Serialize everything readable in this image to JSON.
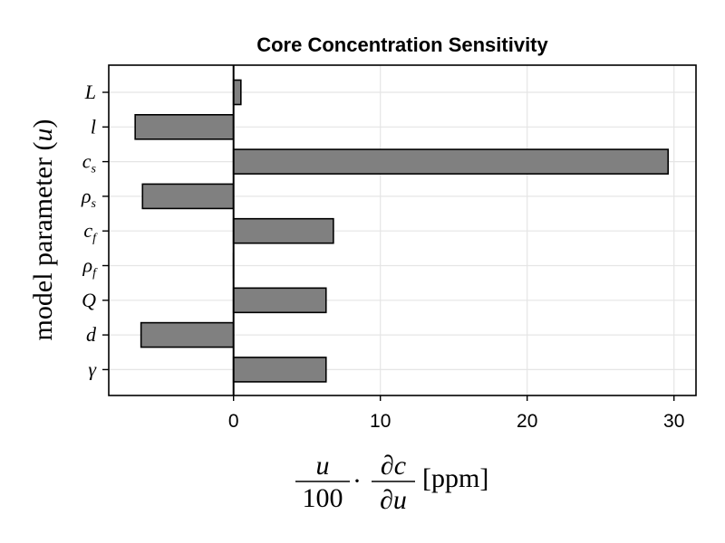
{
  "chart_data": {
    "type": "bar",
    "orientation": "horizontal",
    "title": "Core Concentration Sensitivity",
    "categories": [
      {
        "symbol": "L",
        "sub": ""
      },
      {
        "symbol": "l",
        "sub": ""
      },
      {
        "symbol": "c",
        "sub": "s"
      },
      {
        "symbol": "ρ",
        "sub": "s"
      },
      {
        "symbol": "c",
        "sub": "f"
      },
      {
        "symbol": "ρ",
        "sub": "f"
      },
      {
        "symbol": "Q",
        "sub": ""
      },
      {
        "symbol": "d",
        "sub": ""
      },
      {
        "symbol": "γ",
        "sub": ""
      }
    ],
    "values": [
      0.5,
      -6.7,
      29.6,
      -6.2,
      6.8,
      0.0,
      6.3,
      -6.3,
      6.3
    ],
    "xlim": [
      -8.5,
      31.5
    ],
    "xticks": [
      0,
      10,
      20,
      30
    ],
    "ylabel": "model parameter (u)",
    "ylabel_parts": {
      "text": "model parameter ",
      "var": "u"
    },
    "xlabel": "u/100 · ∂c/∂u [ppm]",
    "xlabel_parts": {
      "num1": "u",
      "den1": "100",
      "dot": "·",
      "num2": "∂c",
      "den2": "∂u",
      "units": "[ppm]"
    },
    "grid": true,
    "colors": {
      "bar": "#808080",
      "bar_edge": "#000000",
      "grid": "#e5e5e5",
      "zero_line": "#000000"
    }
  }
}
